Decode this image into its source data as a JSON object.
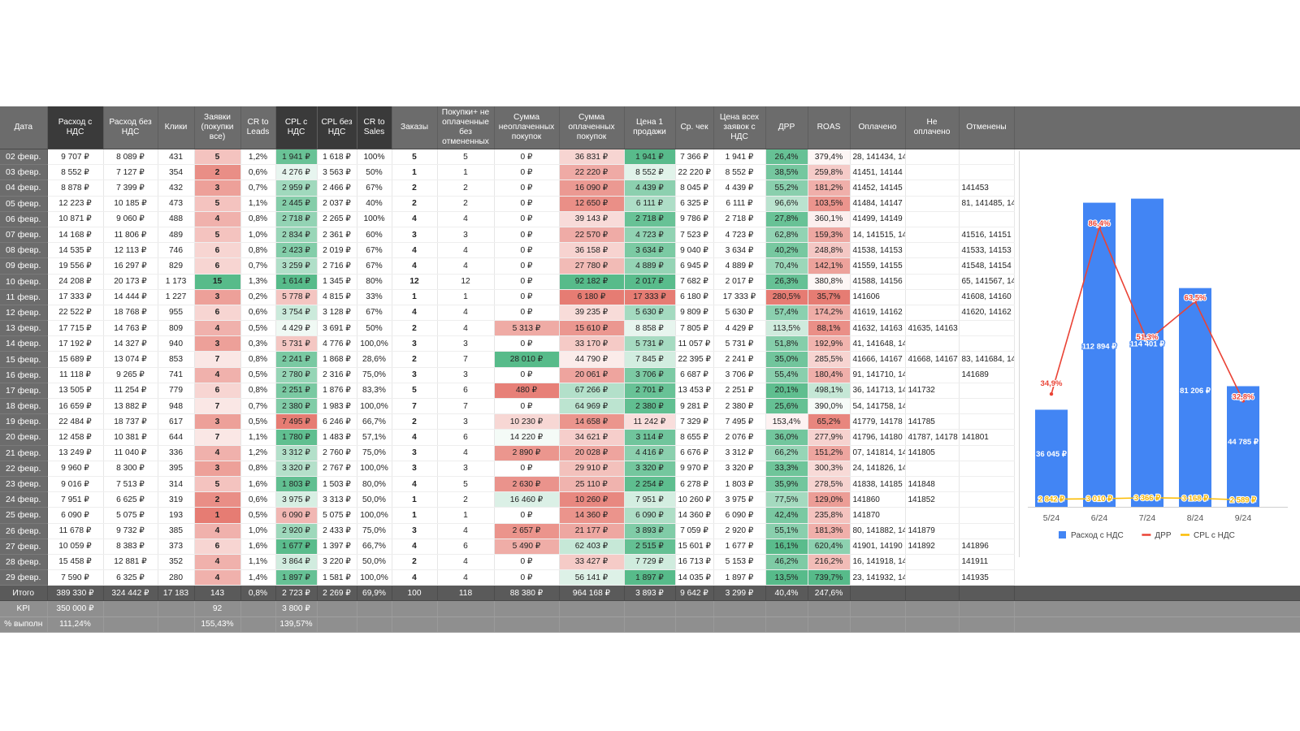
{
  "table": {
    "headers": [
      "Дата",
      "Расход с НДС",
      "Расход без НДС",
      "Клики",
      "Заявки (покупки все)",
      "CR to Leads",
      "CPL с НДС",
      "CPL без НДС",
      "CR to Sales",
      "Заказы",
      "Покупки+ не оплаченные без отмененных",
      "Сумма неоплаченных покупок",
      "Сумма оплаченных покупок",
      "Цена 1 продажи",
      "Ср. чек",
      "Цена всех заявок с НДС",
      "ДРР",
      "ROAS",
      "Оплачено",
      "Не оплачено",
      "Отменены",
      ""
    ],
    "rows": [
      [
        "02 февр.",
        "9 707 ₽",
        "8 089 ₽",
        "431",
        "5",
        "1,2%",
        "1 941 ₽",
        "1 618 ₽",
        "100%",
        "5",
        "5",
        "0 ₽",
        "36 831 ₽",
        "1 941 ₽",
        "7 366 ₽",
        "1 941 ₽",
        "26,4%",
        "379,4%",
        "28, 141434, 14",
        "",
        ""
      ],
      [
        "03 февр.",
        "8 552 ₽",
        "7 127 ₽",
        "354",
        "2",
        "0,6%",
        "4 276 ₽",
        "3 563 ₽",
        "50%",
        "1",
        "1",
        "0 ₽",
        "22 220 ₽",
        "8 552 ₽",
        "22 220 ₽",
        "8 552 ₽",
        "38,5%",
        "259,8%",
        "41451, 14144",
        "",
        ""
      ],
      [
        "04 февр.",
        "8 878 ₽",
        "7 399 ₽",
        "432",
        "3",
        "0,7%",
        "2 959 ₽",
        "2 466 ₽",
        "67%",
        "2",
        "2",
        "0 ₽",
        "16 090 ₽",
        "4 439 ₽",
        "8 045 ₽",
        "4 439 ₽",
        "55,2%",
        "181,2%",
        "41452, 14145",
        "",
        "141453"
      ],
      [
        "05 февр.",
        "12 223 ₽",
        "10 185 ₽",
        "473",
        "5",
        "1,1%",
        "2 445 ₽",
        "2 037 ₽",
        "40%",
        "2",
        "2",
        "0 ₽",
        "12 650 ₽",
        "6 111 ₽",
        "6 325 ₽",
        "6 111 ₽",
        "96,6%",
        "103,5%",
        "41484, 14147",
        "",
        "81, 141485, 14"
      ],
      [
        "06 февр.",
        "10 871 ₽",
        "9 060 ₽",
        "488",
        "4",
        "0,8%",
        "2 718 ₽",
        "2 265 ₽",
        "100%",
        "4",
        "4",
        "0 ₽",
        "39 143 ₽",
        "2 718 ₽",
        "9 786 ₽",
        "2 718 ₽",
        "27,8%",
        "360,1%",
        "41499, 14149",
        "",
        ""
      ],
      [
        "07 февр.",
        "14 168 ₽",
        "11 806 ₽",
        "489",
        "5",
        "1,0%",
        "2 834 ₽",
        "2 361 ₽",
        "60%",
        "3",
        "3",
        "0 ₽",
        "22 570 ₽",
        "4 723 ₽",
        "7 523 ₽",
        "4 723 ₽",
        "62,8%",
        "159,3%",
        "14, 141515, 14",
        "",
        "41516, 14151"
      ],
      [
        "08 февр.",
        "14 535 ₽",
        "12 113 ₽",
        "746",
        "6",
        "0,8%",
        "2 423 ₽",
        "2 019 ₽",
        "67%",
        "4",
        "4",
        "0 ₽",
        "36 158 ₽",
        "3 634 ₽",
        "9 040 ₽",
        "3 634 ₽",
        "40,2%",
        "248,8%",
        "41538, 14153",
        "",
        "41533, 14153"
      ],
      [
        "09 февр.",
        "19 556 ₽",
        "16 297 ₽",
        "829",
        "6",
        "0,7%",
        "3 259 ₽",
        "2 716 ₽",
        "67%",
        "4",
        "4",
        "0 ₽",
        "27 780 ₽",
        "4 889 ₽",
        "6 945 ₽",
        "4 889 ₽",
        "70,4%",
        "142,1%",
        "41559, 14155",
        "",
        "41548, 14154"
      ],
      [
        "10 февр.",
        "24 208 ₽",
        "20 173 ₽",
        "1 173",
        "15",
        "1,3%",
        "1 614 ₽",
        "1 345 ₽",
        "80%",
        "12",
        "12",
        "0 ₽",
        "92 182 ₽",
        "2 017 ₽",
        "7 682 ₽",
        "2 017 ₽",
        "26,3%",
        "380,8%",
        "41588, 14156",
        "",
        "65, 141567, 14"
      ],
      [
        "11 февр.",
        "17 333 ₽",
        "14 444 ₽",
        "1 227",
        "3",
        "0,2%",
        "5 778 ₽",
        "4 815 ₽",
        "33%",
        "1",
        "1",
        "0 ₽",
        "6 180 ₽",
        "17 333 ₽",
        "6 180 ₽",
        "17 333 ₽",
        "280,5%",
        "35,7%",
        "141606",
        "",
        "41608, 14160"
      ],
      [
        "12 февр.",
        "22 522 ₽",
        "18 768 ₽",
        "955",
        "6",
        "0,6%",
        "3 754 ₽",
        "3 128 ₽",
        "67%",
        "4",
        "4",
        "0 ₽",
        "39 235 ₽",
        "5 630 ₽",
        "9 809 ₽",
        "5 630 ₽",
        "57,4%",
        "174,2%",
        "41619, 14162",
        "",
        "41620, 14162"
      ],
      [
        "13 февр.",
        "17 715 ₽",
        "14 763 ₽",
        "809",
        "4",
        "0,5%",
        "4 429 ₽",
        "3 691 ₽",
        "50%",
        "2",
        "4",
        "5 313 ₽",
        "15 610 ₽",
        "8 858 ₽",
        "7 805 ₽",
        "4 429 ₽",
        "113,5%",
        "88,1%",
        "41632, 14163",
        "41635, 14163",
        ""
      ],
      [
        "14 февр.",
        "17 192 ₽",
        "14 327 ₽",
        "940",
        "3",
        "0,3%",
        "5 731 ₽",
        "4 776 ₽",
        "100,0%",
        "3",
        "3",
        "0 ₽",
        "33 170 ₽",
        "5 731 ₽",
        "11 057 ₽",
        "5 731 ₽",
        "51,8%",
        "192,9%",
        "41, 141648, 14",
        "",
        ""
      ],
      [
        "15 февр.",
        "15 689 ₽",
        "13 074 ₽",
        "853",
        "7",
        "0,8%",
        "2 241 ₽",
        "1 868 ₽",
        "28,6%",
        "2",
        "7",
        "28 010 ₽",
        "44 790 ₽",
        "7 845 ₽",
        "22 395 ₽",
        "2 241 ₽",
        "35,0%",
        "285,5%",
        "41666, 14167",
        "41668, 14167",
        "83, 141684, 14"
      ],
      [
        "16 февр.",
        "11 118 ₽",
        "9 265 ₽",
        "741",
        "4",
        "0,5%",
        "2 780 ₽",
        "2 316 ₽",
        "75,0%",
        "3",
        "3",
        "0 ₽",
        "20 061 ₽",
        "3 706 ₽",
        "6 687 ₽",
        "3 706 ₽",
        "55,4%",
        "180,4%",
        "91, 141710, 14",
        "",
        "141689"
      ],
      [
        "17 февр.",
        "13 505 ₽",
        "11 254 ₽",
        "779",
        "6",
        "0,8%",
        "2 251 ₽",
        "1 876 ₽",
        "83,3%",
        "5",
        "6",
        "480 ₽",
        "67 266 ₽",
        "2 701 ₽",
        "13 453 ₽",
        "2 251 ₽",
        "20,1%",
        "498,1%",
        "36, 141713, 14",
        "141732",
        ""
      ],
      [
        "18 февр.",
        "16 659 ₽",
        "13 882 ₽",
        "948",
        "7",
        "0,7%",
        "2 380 ₽",
        "1 983 ₽",
        "100,0%",
        "7",
        "7",
        "0 ₽",
        "64 969 ₽",
        "2 380 ₽",
        "9 281 ₽",
        "2 380 ₽",
        "25,6%",
        "390,0%",
        "54, 141758, 14",
        "",
        ""
      ],
      [
        "19 февр.",
        "22 484 ₽",
        "18 737 ₽",
        "617",
        "3",
        "0,5%",
        "7 495 ₽",
        "6 246 ₽",
        "66,7%",
        "2",
        "3",
        "10 230 ₽",
        "14 658 ₽",
        "11 242 ₽",
        "7 329 ₽",
        "7 495 ₽",
        "153,4%",
        "65,2%",
        "41779, 14178",
        "141785",
        ""
      ],
      [
        "20 февр.",
        "12 458 ₽",
        "10 381 ₽",
        "644",
        "7",
        "1,1%",
        "1 780 ₽",
        "1 483 ₽",
        "57,1%",
        "4",
        "6",
        "14 220 ₽",
        "34 621 ₽",
        "3 114 ₽",
        "8 655 ₽",
        "2 076 ₽",
        "36,0%",
        "277,9%",
        "41796, 14180",
        "41787, 14178",
        "141801"
      ],
      [
        "21 февр.",
        "13 249 ₽",
        "11 040 ₽",
        "336",
        "4",
        "1,2%",
        "3 312 ₽",
        "2 760 ₽",
        "75,0%",
        "3",
        "4",
        "2 890 ₽",
        "20 028 ₽",
        "4 416 ₽",
        "6 676 ₽",
        "3 312 ₽",
        "66,2%",
        "151,2%",
        "07, 141814, 14",
        "141805",
        ""
      ],
      [
        "22 февр.",
        "9 960 ₽",
        "8 300 ₽",
        "395",
        "3",
        "0,8%",
        "3 320 ₽",
        "2 767 ₽",
        "100,0%",
        "3",
        "3",
        "0 ₽",
        "29 910 ₽",
        "3 320 ₽",
        "9 970 ₽",
        "3 320 ₽",
        "33,3%",
        "300,3%",
        "24, 141826, 14",
        "",
        ""
      ],
      [
        "23 февр.",
        "9 016 ₽",
        "7 513 ₽",
        "314",
        "5",
        "1,6%",
        "1 803 ₽",
        "1 503 ₽",
        "80,0%",
        "4",
        "5",
        "2 630 ₽",
        "25 110 ₽",
        "2 254 ₽",
        "6 278 ₽",
        "1 803 ₽",
        "35,9%",
        "278,5%",
        "41838, 14185",
        "141848",
        ""
      ],
      [
        "24 февр.",
        "7 951 ₽",
        "6 625 ₽",
        "319",
        "2",
        "0,6%",
        "3 975 ₽",
        "3 313 ₽",
        "50,0%",
        "1",
        "2",
        "16 460 ₽",
        "10 260 ₽",
        "7 951 ₽",
        "10 260 ₽",
        "3 975 ₽",
        "77,5%",
        "129,0%",
        "141860",
        "141852",
        ""
      ],
      [
        "25 февр.",
        "6 090 ₽",
        "5 075 ₽",
        "193",
        "1",
        "0,5%",
        "6 090 ₽",
        "5 075 ₽",
        "100,0%",
        "1",
        "1",
        "0 ₽",
        "14 360 ₽",
        "6 090 ₽",
        "14 360 ₽",
        "6 090 ₽",
        "42,4%",
        "235,8%",
        "141870",
        "",
        ""
      ],
      [
        "26 февр.",
        "11 678 ₽",
        "9 732 ₽",
        "385",
        "4",
        "1,0%",
        "2 920 ₽",
        "2 433 ₽",
        "75,0%",
        "3",
        "4",
        "2 657 ₽",
        "21 177 ₽",
        "3 893 ₽",
        "7 059 ₽",
        "2 920 ₽",
        "55,1%",
        "181,3%",
        "80, 141882, 14",
        "141879",
        ""
      ],
      [
        "27 февр.",
        "10 059 ₽",
        "8 383 ₽",
        "373",
        "6",
        "1,6%",
        "1 677 ₽",
        "1 397 ₽",
        "66,7%",
        "4",
        "6",
        "5 490 ₽",
        "62 403 ₽",
        "2 515 ₽",
        "15 601 ₽",
        "1 677 ₽",
        "16,1%",
        "620,4%",
        "41901, 14190",
        "141892",
        "141896"
      ],
      [
        "28 февр.",
        "15 458 ₽",
        "12 881 ₽",
        "352",
        "4",
        "1,1%",
        "3 864 ₽",
        "3 220 ₽",
        "50,0%",
        "2",
        "4",
        "0 ₽",
        "33 427 ₽",
        "7 729 ₽",
        "16 713 ₽",
        "5 153 ₽",
        "46,2%",
        "216,2%",
        "16, 141918, 14",
        "",
        "141911"
      ],
      [
        "29 февр.",
        "7 590 ₽",
        "6 325 ₽",
        "280",
        "4",
        "1,4%",
        "1 897 ₽",
        "1 581 ₽",
        "100,0%",
        "4",
        "4",
        "0 ₽",
        "56 141 ₽",
        "1 897 ₽",
        "14 035 ₽",
        "1 897 ₽",
        "13,5%",
        "739,7%",
        "23, 141932, 14",
        "",
        "141935"
      ]
    ],
    "total": [
      "Итого",
      "389 330 ₽",
      "324 442 ₽",
      "17 183",
      "143",
      "0,8%",
      "2 723 ₽",
      "2 269 ₽",
      "69,9%",
      "100",
      "118",
      "88 380 ₽",
      "964 168 ₽",
      "3 893 ₽",
      "9 642 ₽",
      "3 299 ₽",
      "40,4%",
      "247,6%",
      "",
      "",
      "",
      ""
    ],
    "kpi": [
      "KPI",
      "350 000 ₽",
      "",
      "",
      "92",
      "",
      "3 800 ₽",
      "",
      "",
      "",
      "",
      "",
      "",
      "",
      "",
      "",
      "",
      "",
      "",
      "",
      "",
      ""
    ],
    "pct": [
      "% выполн",
      "111,24%",
      "",
      "",
      "155,43%",
      "",
      "139,57%",
      "",
      "",
      "",
      "",
      "",
      "",
      "",
      "",
      "",
      "",
      "",
      "",
      "",
      "",
      ""
    ],
    "colors": {
      "header_bg": "#6c6c6c",
      "header_dark_bg": "#3a3a3a",
      "footer_bg": "#5a5a5a",
      "footer2_bg": "#8f8f8f",
      "good": "#57bb8a",
      "bad": "#e67c73"
    }
  },
  "chart_data": {
    "type": "bar",
    "categories": [
      "5/24",
      "6/24",
      "7/24",
      "8/24",
      "9/24"
    ],
    "series": [
      {
        "name": "Расход с НДС",
        "type": "bar",
        "axis": "left",
        "color": "#4285f4",
        "values": [
          36045,
          112894,
          114401,
          81206,
          44785
        ],
        "labels": [
          "36 045 ₽",
          "112 894 ₽",
          "114 401 ₽",
          "81 206 ₽",
          "44 785 ₽"
        ]
      },
      {
        "name": "ДРР",
        "type": "line",
        "axis": "right",
        "color": "#ea4335",
        "values": [
          34.9,
          86.4,
          51.3,
          63.5,
          32.8
        ],
        "labels": [
          "34,9%",
          "86,4%",
          "51,3%",
          "63,5%",
          "32,8%"
        ]
      },
      {
        "name": "CPL с НДС",
        "type": "line",
        "axis": "left",
        "color": "#fbbc04",
        "values": [
          2842,
          3010,
          3366,
          3168,
          2589
        ],
        "labels": [
          "2 842 ₽",
          "3 010 ₽",
          "3 366 ₽",
          "3 168 ₽",
          "2 589 ₽"
        ]
      }
    ],
    "legend_position": "bottom",
    "grid": false
  }
}
